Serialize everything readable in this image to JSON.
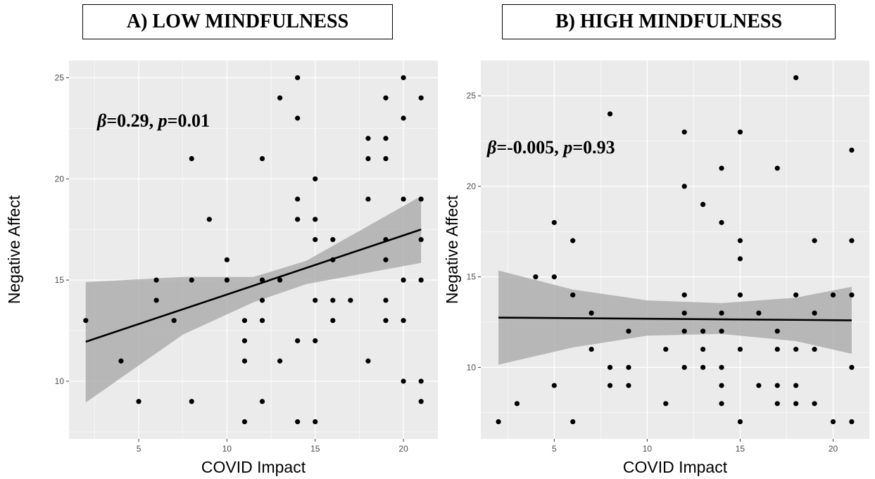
{
  "panels": {
    "a_title": "A) LOW MINDFULNESS",
    "b_title": "B) HIGH MINDFULNESS"
  },
  "colors": {
    "panel_bg": "#ebebeb",
    "grid_major": "#ffffff",
    "point": "#000000",
    "fit_line": "#000000",
    "ribbon": "#a6a6a6"
  },
  "chart_data": [
    {
      "type": "scatter",
      "title": "A) LOW MINDFULNESS",
      "xlabel": "COVID Impact",
      "ylabel": "Negative Affect",
      "xlim": [
        1.05,
        21.95
      ],
      "ylim": [
        7.15,
        25.85
      ],
      "xticks": [
        5,
        10,
        15,
        20
      ],
      "yticks": [
        10,
        15,
        20,
        25
      ],
      "grid": true,
      "annotation": {
        "beta_symbol": "β",
        "beta_text": "=0.29, ",
        "p_symbol": "p",
        "p_text": "=0.01"
      },
      "fit": {
        "x": [
          2,
          21
        ],
        "y": [
          11.95,
          17.5
        ]
      },
      "ribbon": {
        "x": [
          2,
          7.5,
          11.5,
          14.5,
          21
        ],
        "lower": [
          8.95,
          12.3,
          13.9,
          14.8,
          15.85
        ],
        "upper": [
          14.9,
          15.15,
          15.15,
          15.95,
          19.15
        ]
      },
      "points": [
        {
          "x": 2,
          "y": 13
        },
        {
          "x": 4,
          "y": 11
        },
        {
          "x": 5,
          "y": 9
        },
        {
          "x": 6,
          "y": 15
        },
        {
          "x": 6,
          "y": 14
        },
        {
          "x": 7,
          "y": 13
        },
        {
          "x": 8,
          "y": 21
        },
        {
          "x": 8,
          "y": 15
        },
        {
          "x": 8,
          "y": 9
        },
        {
          "x": 9,
          "y": 18
        },
        {
          "x": 10,
          "y": 16
        },
        {
          "x": 10,
          "y": 15
        },
        {
          "x": 11,
          "y": 13
        },
        {
          "x": 11,
          "y": 12
        },
        {
          "x": 11,
          "y": 11
        },
        {
          "x": 11,
          "y": 8
        },
        {
          "x": 12,
          "y": 21
        },
        {
          "x": 12,
          "y": 15
        },
        {
          "x": 12,
          "y": 14
        },
        {
          "x": 12,
          "y": 13
        },
        {
          "x": 12,
          "y": 9
        },
        {
          "x": 13,
          "y": 24
        },
        {
          "x": 13,
          "y": 15
        },
        {
          "x": 13,
          "y": 11
        },
        {
          "x": 14,
          "y": 25
        },
        {
          "x": 14,
          "y": 23
        },
        {
          "x": 14,
          "y": 19
        },
        {
          "x": 14,
          "y": 18
        },
        {
          "x": 14,
          "y": 12
        },
        {
          "x": 14,
          "y": 8
        },
        {
          "x": 15,
          "y": 20
        },
        {
          "x": 15,
          "y": 18
        },
        {
          "x": 15,
          "y": 17
        },
        {
          "x": 15,
          "y": 14
        },
        {
          "x": 15,
          "y": 12
        },
        {
          "x": 15,
          "y": 8
        },
        {
          "x": 16,
          "y": 17
        },
        {
          "x": 16,
          "y": 16
        },
        {
          "x": 16,
          "y": 14
        },
        {
          "x": 16,
          "y": 13
        },
        {
          "x": 17,
          "y": 14
        },
        {
          "x": 18,
          "y": 22
        },
        {
          "x": 18,
          "y": 21
        },
        {
          "x": 18,
          "y": 19
        },
        {
          "x": 18,
          "y": 11
        },
        {
          "x": 19,
          "y": 24
        },
        {
          "x": 19,
          "y": 22
        },
        {
          "x": 19,
          "y": 21
        },
        {
          "x": 19,
          "y": 17
        },
        {
          "x": 19,
          "y": 16
        },
        {
          "x": 19,
          "y": 14
        },
        {
          "x": 19,
          "y": 13
        },
        {
          "x": 20,
          "y": 25
        },
        {
          "x": 20,
          "y": 23
        },
        {
          "x": 20,
          "y": 19
        },
        {
          "x": 20,
          "y": 15
        },
        {
          "x": 20,
          "y": 13
        },
        {
          "x": 20,
          "y": 10
        },
        {
          "x": 21,
          "y": 24
        },
        {
          "x": 21,
          "y": 19
        },
        {
          "x": 21,
          "y": 17
        },
        {
          "x": 21,
          "y": 15
        },
        {
          "x": 21,
          "y": 10
        },
        {
          "x": 21,
          "y": 9
        }
      ]
    },
    {
      "type": "scatter",
      "title": "B) HIGH MINDFULNESS",
      "xlabel": "COVID Impact",
      "ylabel": "Negative Affect",
      "xlim": [
        1.05,
        21.95
      ],
      "ylim": [
        6.05,
        26.95
      ],
      "xticks": [
        5,
        10,
        15,
        20
      ],
      "yticks": [
        10,
        15,
        20,
        25
      ],
      "grid": true,
      "annotation": {
        "beta_symbol": "β",
        "beta_text": "=-0.005, ",
        "p_symbol": "p",
        "p_text": "=0.93"
      },
      "fit": {
        "x": [
          2,
          21
        ],
        "y": [
          12.75,
          12.6
        ]
      },
      "ribbon": {
        "x": [
          2,
          6,
          10,
          14,
          18,
          21
        ],
        "lower": [
          10.15,
          11.1,
          11.75,
          11.85,
          11.45,
          10.75
        ],
        "upper": [
          15.35,
          14.3,
          13.7,
          13.55,
          13.85,
          14.45
        ]
      },
      "points": [
        {
          "x": 2,
          "y": 7
        },
        {
          "x": 3,
          "y": 8
        },
        {
          "x": 4,
          "y": 15
        },
        {
          "x": 5,
          "y": 18
        },
        {
          "x": 5,
          "y": 15
        },
        {
          "x": 5,
          "y": 9
        },
        {
          "x": 6,
          "y": 17
        },
        {
          "x": 6,
          "y": 14
        },
        {
          "x": 6,
          "y": 7
        },
        {
          "x": 7,
          "y": 13
        },
        {
          "x": 7,
          "y": 11
        },
        {
          "x": 8,
          "y": 24
        },
        {
          "x": 8,
          "y": 10
        },
        {
          "x": 8,
          "y": 9
        },
        {
          "x": 9,
          "y": 12
        },
        {
          "x": 9,
          "y": 10
        },
        {
          "x": 9,
          "y": 9
        },
        {
          "x": 11,
          "y": 11
        },
        {
          "x": 11,
          "y": 8
        },
        {
          "x": 12,
          "y": 23
        },
        {
          "x": 12,
          "y": 20
        },
        {
          "x": 12,
          "y": 14
        },
        {
          "x": 12,
          "y": 13
        },
        {
          "x": 12,
          "y": 12
        },
        {
          "x": 12,
          "y": 10
        },
        {
          "x": 13,
          "y": 19
        },
        {
          "x": 13,
          "y": 12
        },
        {
          "x": 13,
          "y": 11
        },
        {
          "x": 13,
          "y": 10
        },
        {
          "x": 14,
          "y": 21
        },
        {
          "x": 14,
          "y": 18
        },
        {
          "x": 14,
          "y": 13
        },
        {
          "x": 14,
          "y": 12
        },
        {
          "x": 14,
          "y": 10
        },
        {
          "x": 14,
          "y": 9
        },
        {
          "x": 14,
          "y": 8
        },
        {
          "x": 15,
          "y": 23
        },
        {
          "x": 15,
          "y": 17
        },
        {
          "x": 15,
          "y": 16
        },
        {
          "x": 15,
          "y": 14
        },
        {
          "x": 15,
          "y": 11
        },
        {
          "x": 15,
          "y": 7
        },
        {
          "x": 16,
          "y": 13
        },
        {
          "x": 16,
          "y": 9
        },
        {
          "x": 17,
          "y": 21
        },
        {
          "x": 17,
          "y": 12
        },
        {
          "x": 17,
          "y": 11
        },
        {
          "x": 17,
          "y": 9
        },
        {
          "x": 17,
          "y": 8
        },
        {
          "x": 18,
          "y": 26
        },
        {
          "x": 18,
          "y": 14
        },
        {
          "x": 18,
          "y": 11
        },
        {
          "x": 18,
          "y": 9
        },
        {
          "x": 18,
          "y": 8
        },
        {
          "x": 19,
          "y": 17
        },
        {
          "x": 19,
          "y": 13
        },
        {
          "x": 19,
          "y": 11
        },
        {
          "x": 19,
          "y": 8
        },
        {
          "x": 20,
          "y": 14
        },
        {
          "x": 20,
          "y": 7
        },
        {
          "x": 21,
          "y": 22
        },
        {
          "x": 21,
          "y": 17
        },
        {
          "x": 21,
          "y": 14
        },
        {
          "x": 21,
          "y": 10
        },
        {
          "x": 21,
          "y": 7
        }
      ]
    }
  ]
}
